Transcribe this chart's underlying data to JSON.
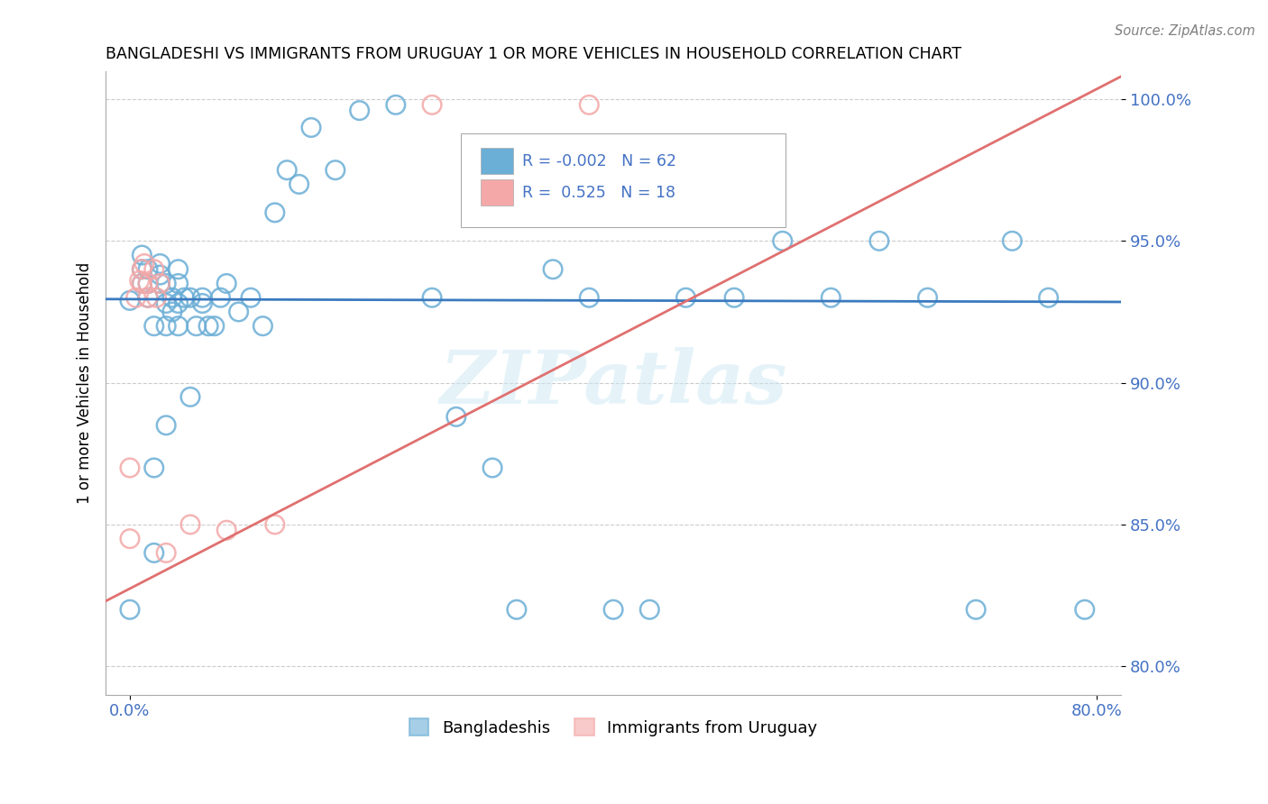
{
  "title": "BANGLADESHI VS IMMIGRANTS FROM URUGUAY 1 OR MORE VEHICLES IN HOUSEHOLD CORRELATION CHART",
  "source": "Source: ZipAtlas.com",
  "ylabel_label": "1 or more Vehicles in Household",
  "ylabel_ticks": [
    "80.0%",
    "85.0%",
    "90.0%",
    "95.0%",
    "100.0%"
  ],
  "ytick_vals": [
    0.8,
    0.85,
    0.9,
    0.95,
    1.0
  ],
  "xtick_vals": [
    0.0,
    0.8
  ],
  "xtick_labels": [
    "0.0%",
    "80.0%"
  ],
  "xlim": [
    -0.02,
    0.82
  ],
  "ylim": [
    0.79,
    1.01
  ],
  "legend_label1": "Bangladeshis",
  "legend_label2": "Immigrants from Uruguay",
  "R1": "-0.002",
  "N1": "62",
  "R2": "0.525",
  "N2": "18",
  "blue_color": "#6baed6",
  "pink_color": "#f4a8a8",
  "blue_line_color": "#3a7abf",
  "pink_line_color": "#e07070",
  "blue_scatter_x": [
    0.0,
    0.0,
    0.01,
    0.01,
    0.01,
    0.015,
    0.015,
    0.015,
    0.02,
    0.02,
    0.02,
    0.025,
    0.025,
    0.025,
    0.03,
    0.03,
    0.03,
    0.03,
    0.035,
    0.035,
    0.04,
    0.04,
    0.04,
    0.04,
    0.045,
    0.05,
    0.05,
    0.055,
    0.06,
    0.06,
    0.065,
    0.07,
    0.075,
    0.08,
    0.09,
    0.1,
    0.11,
    0.12,
    0.13,
    0.14,
    0.15,
    0.17,
    0.19,
    0.22,
    0.25,
    0.27,
    0.3,
    0.32,
    0.35,
    0.38,
    0.4,
    0.43,
    0.46,
    0.5,
    0.54,
    0.58,
    0.62,
    0.66,
    0.7,
    0.73,
    0.76,
    0.79
  ],
  "blue_scatter_y": [
    0.929,
    0.82,
    0.935,
    0.94,
    0.945,
    0.93,
    0.935,
    0.94,
    0.84,
    0.87,
    0.92,
    0.935,
    0.938,
    0.942,
    0.885,
    0.92,
    0.928,
    0.935,
    0.925,
    0.93,
    0.92,
    0.928,
    0.935,
    0.94,
    0.93,
    0.895,
    0.93,
    0.92,
    0.928,
    0.93,
    0.92,
    0.92,
    0.93,
    0.935,
    0.925,
    0.93,
    0.92,
    0.96,
    0.975,
    0.97,
    0.99,
    0.975,
    0.996,
    0.998,
    0.93,
    0.888,
    0.87,
    0.82,
    0.94,
    0.93,
    0.82,
    0.82,
    0.93,
    0.93,
    0.95,
    0.93,
    0.95,
    0.93,
    0.82,
    0.95,
    0.93,
    0.82
  ],
  "pink_scatter_x": [
    0.0,
    0.0,
    0.005,
    0.008,
    0.01,
    0.01,
    0.012,
    0.015,
    0.015,
    0.02,
    0.022,
    0.025,
    0.03,
    0.05,
    0.08,
    0.12,
    0.25,
    0.38
  ],
  "pink_scatter_y": [
    0.87,
    0.845,
    0.93,
    0.936,
    0.935,
    0.94,
    0.942,
    0.93,
    0.935,
    0.94,
    0.93,
    0.935,
    0.84,
    0.85,
    0.848,
    0.85,
    0.998,
    0.998
  ],
  "watermark": "ZIPatlas",
  "blue_trend_x": [
    -0.02,
    0.82
  ],
  "blue_trend_y": [
    0.9295,
    0.9285
  ],
  "pink_trend_x": [
    -0.02,
    0.82
  ],
  "pink_trend_y": [
    0.823,
    1.008
  ]
}
